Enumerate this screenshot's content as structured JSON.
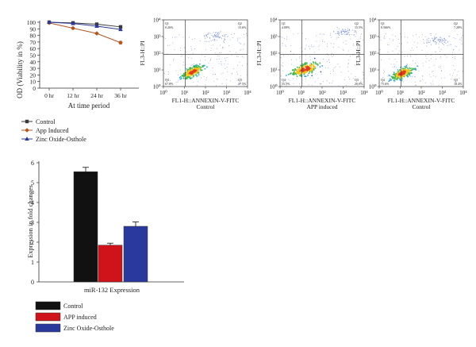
{
  "chart_data": [
    {
      "type": "line",
      "ylabel": "OD (Viability in %)",
      "xlabel": "At time period",
      "categories": [
        "0 hr",
        "12 hr",
        "24 hr",
        "36 hr"
      ],
      "ylim": [
        0,
        100
      ],
      "yticks": [
        0,
        10,
        20,
        30,
        40,
        50,
        60,
        70,
        80,
        90,
        100
      ],
      "legend_position": "bottom-left",
      "series": [
        {
          "name": "Control",
          "values": [
            100,
            99,
            97,
            93
          ],
          "errors": [
            1,
            1.5,
            1.5,
            1.5
          ],
          "color": "#3a3a3a",
          "marker": "square"
        },
        {
          "name": "App Induced",
          "values": [
            99,
            91,
            83,
            69
          ],
          "errors": [
            1,
            1.5,
            1.2,
            2
          ],
          "color": "#b5551c",
          "marker": "diamond"
        },
        {
          "name": "Zinc Oxide-Osthole",
          "values": [
            100,
            98,
            94,
            89
          ],
          "errors": [
            1,
            1.5,
            1.5,
            1.5
          ],
          "color": "#2c3a9a",
          "marker": "triangle"
        }
      ]
    },
    {
      "type": "scatter",
      "xlabel_line1": "FL1-H::ANNEXIN-V-FITC",
      "xlabel_line2": "Control",
      "ylabel": "FL3-H::PI",
      "axis_scale": "log",
      "xticks": [
        "10⁰",
        "10¹",
        "10²",
        "10³",
        "10⁴"
      ],
      "yticks": [
        "10⁰",
        "10¹",
        "10²",
        "10³",
        "10⁴"
      ],
      "quadrants": {
        "q1": "Q1",
        "q2": "Q2",
        "q3": "Q3",
        "q4": "Q4",
        "q1_pct": "0.26%",
        "q2_pct": "15.6%",
        "q3_pct": "17.5%",
        "q4_pct": "67.8%"
      }
    },
    {
      "type": "scatter",
      "xlabel_line1": "FL1-H::ANNEXIN-V-FITC",
      "xlabel_line2": "APP induced",
      "ylabel": "FL3-H::PI",
      "axis_scale": "log",
      "xticks": [
        "10⁰",
        "10¹",
        "10²",
        "10³",
        "10⁴"
      ],
      "yticks": [
        "10⁰",
        "10¹",
        "10²",
        "10³",
        "10⁴"
      ],
      "quadrants": {
        "q1": "Q1",
        "q2": "Q2",
        "q3": "Q3",
        "q4": "Q4",
        "q1_pct": "4.08%",
        "q2_pct": "15.5%",
        "q3_pct": "20.0%",
        "q4_pct": "55.5%"
      }
    },
    {
      "type": "scatter",
      "xlabel_line1": "FL1-H::ANNEXIN-V-FITC",
      "xlabel_line2": "Control",
      "ylabel": "FL3-H::PI",
      "axis_scale": "log",
      "xticks": [
        "10⁰",
        "10¹",
        "10²",
        "10³",
        "10⁴"
      ],
      "yticks": [
        "10⁰",
        "10¹",
        "10²",
        "10³",
        "10⁴"
      ],
      "quadrants": {
        "q1": "Q1",
        "q2": "Q2",
        "q3": "Q3",
        "q4": "Q4",
        "q1_pct": "0.566%",
        "q2_pct": "7.28%",
        "q3_pct": "18.4%",
        "q4_pct": "75.6%"
      }
    },
    {
      "type": "bar",
      "ylabel": "Expression in fold changes",
      "xlabel": "miR-132 Expression",
      "ylim": [
        0,
        6
      ],
      "yticks": [
        0,
        1,
        2,
        3,
        4,
        5,
        6
      ],
      "legend_position": "bottom-left",
      "series": [
        {
          "name": "Control",
          "values": [
            5.55
          ],
          "errors": [
            0.22
          ],
          "color": "#111111"
        },
        {
          "name": "APP induced",
          "values": [
            1.85
          ],
          "errors": [
            0.1
          ],
          "color": "#d0121b"
        },
        {
          "name": "Zinc Oxide-Osthole",
          "values": [
            2.8
          ],
          "errors": [
            0.22
          ],
          "color": "#2a3a9c"
        }
      ]
    }
  ]
}
